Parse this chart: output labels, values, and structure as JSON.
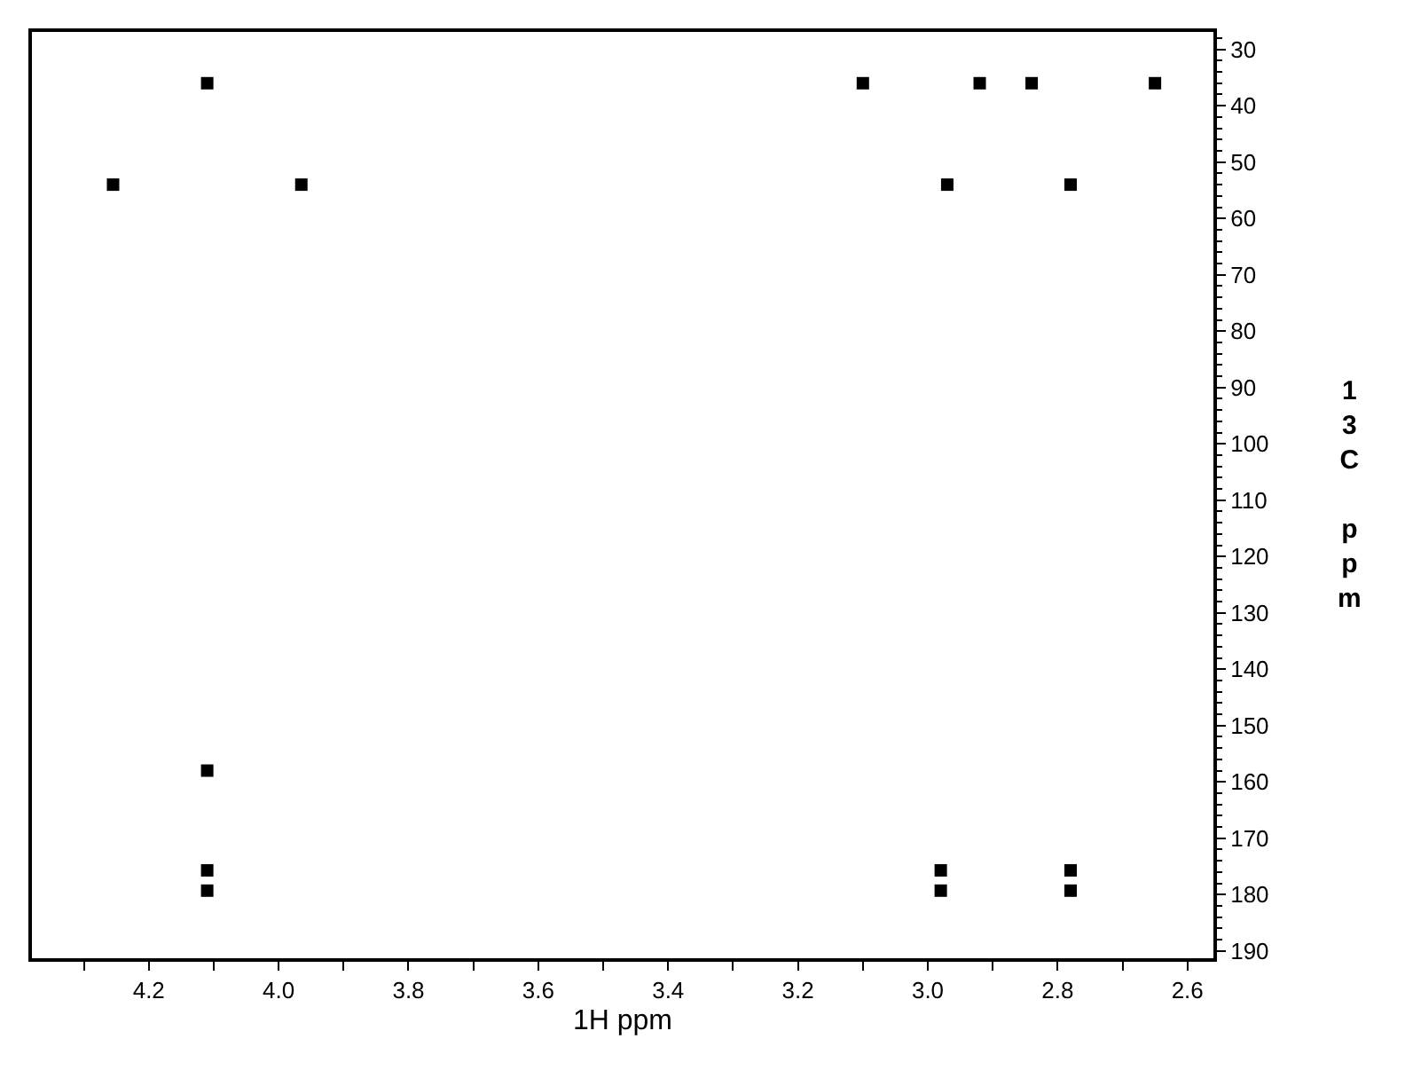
{
  "chart_data": {
    "type": "scatter",
    "xlabel": "1H ppm",
    "ylabel": "13C ppm",
    "x": [
      4.11,
      3.1,
      2.92,
      2.84,
      2.65,
      4.255,
      3.965,
      2.97,
      2.78,
      4.11,
      4.11,
      4.11,
      2.98,
      2.98,
      2.78,
      2.78
    ],
    "values": [
      36,
      36,
      36,
      36,
      36,
      54,
      54,
      54,
      54,
      158,
      175.7,
      179.3,
      175.7,
      179.3,
      175.7,
      179.3
    ],
    "color": "#000000",
    "xlim": [
      4.38,
      2.56
    ],
    "ylim": [
      191.3,
      26.9
    ],
    "xticks": [
      {
        "value": 4.3,
        "label": null
      },
      4.2,
      {
        "value": 4.1,
        "label": null
      },
      {
        "value": 4.0,
        "label": "4.0"
      },
      {
        "value": 3.9,
        "label": null
      },
      3.8,
      {
        "value": 3.7,
        "label": null
      },
      3.6,
      {
        "value": 3.5,
        "label": null
      },
      3.4,
      {
        "value": 3.3,
        "label": null
      },
      3.2,
      {
        "value": 3.1,
        "label": null
      },
      {
        "value": 3.0,
        "label": "3.0"
      },
      {
        "value": 2.9,
        "label": null
      },
      2.8,
      {
        "value": 2.7,
        "label": null
      },
      2.6
    ],
    "yticks": [
      30,
      40,
      50,
      60,
      70,
      80,
      90,
      100,
      110,
      120,
      130,
      140,
      150,
      160,
      170,
      180,
      190
    ],
    "grid": false,
    "marker": "square"
  }
}
